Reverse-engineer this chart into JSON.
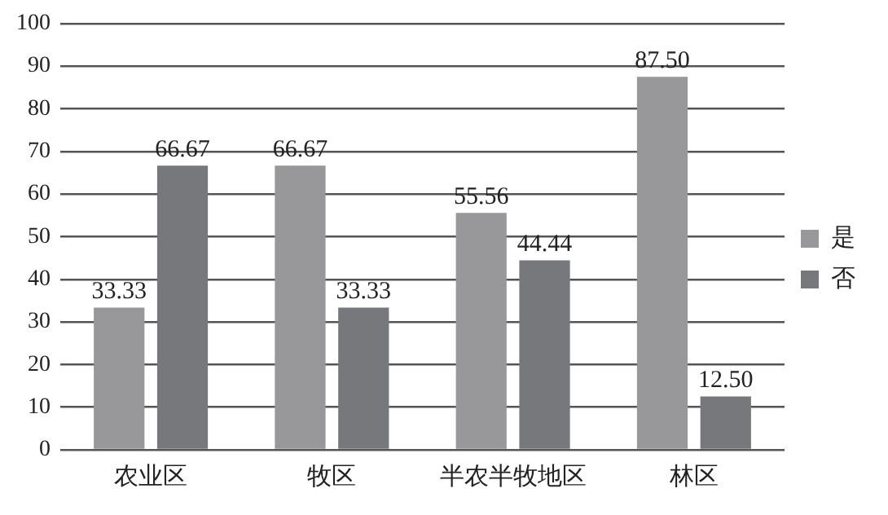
{
  "chart_data": {
    "type": "bar",
    "categories": [
      "农业区",
      "牧区",
      "半农半牧地区",
      "林区"
    ],
    "series": [
      {
        "name": "是",
        "color": "#98989a",
        "values": [
          33.33,
          66.67,
          55.56,
          87.5
        ]
      },
      {
        "name": "否",
        "color": "#77787b",
        "values": [
          66.67,
          33.33,
          44.44,
          12.5
        ]
      }
    ],
    "value_labels": [
      [
        "33.33",
        "66.67",
        "55.56",
        "87.50"
      ],
      [
        "66.67",
        "33.33",
        "44.44",
        "12.50"
      ]
    ],
    "ylim": [
      0,
      100
    ],
    "yticks": [
      0,
      10,
      20,
      30,
      40,
      50,
      60,
      70,
      80,
      90,
      100
    ],
    "grid": "y",
    "legend": "right"
  }
}
